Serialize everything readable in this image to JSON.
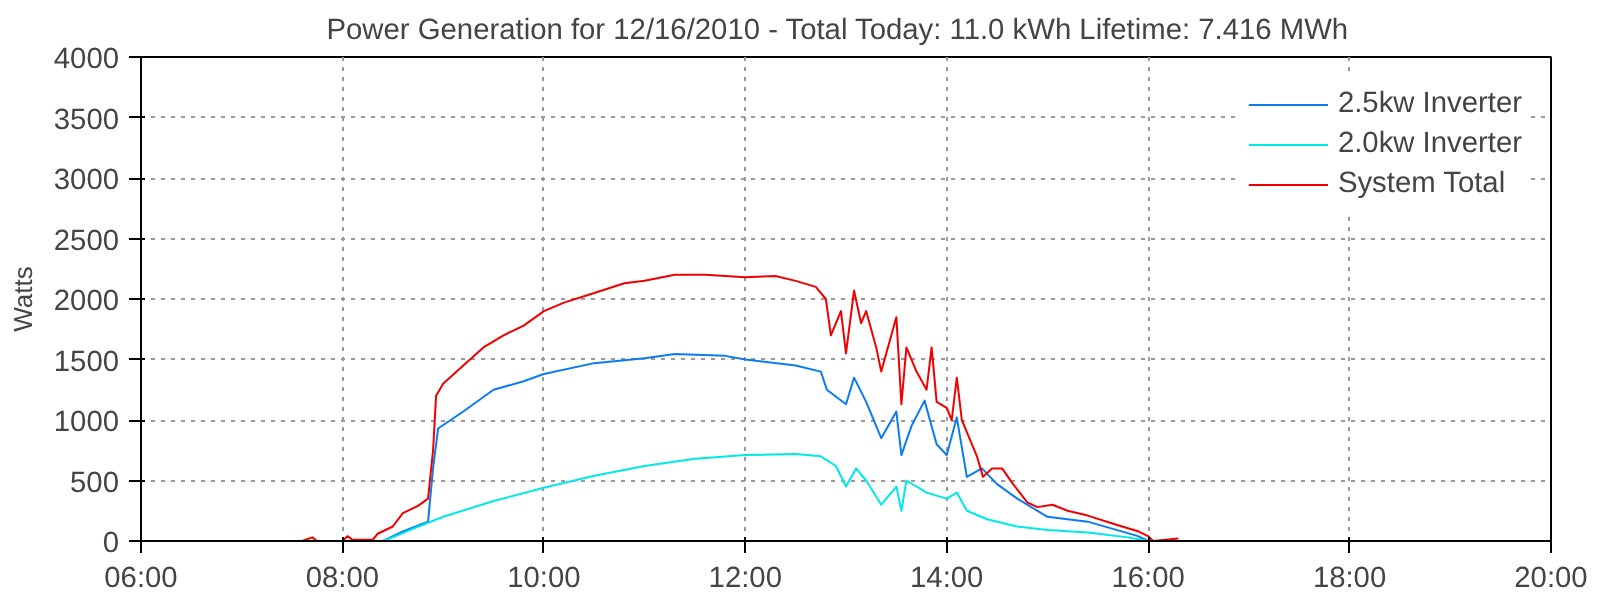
{
  "chart_data": {
    "type": "line",
    "title": "Power Generation for 12/16/2010 - Total Today: 11.0 kWh   Lifetime: 7.416 MWh",
    "ylabel": "Watts",
    "xlim": [
      6,
      20
    ],
    "xticks": [
      {
        "value": 6,
        "label": "06:00"
      },
      {
        "value": 8,
        "label": "08:00"
      },
      {
        "value": 10,
        "label": "10:00"
      },
      {
        "value": 12,
        "label": "12:00"
      },
      {
        "value": 14,
        "label": "14:00"
      },
      {
        "value": 16,
        "label": "16:00"
      },
      {
        "value": 18,
        "label": "18:00"
      },
      {
        "value": 20,
        "label": "20:00"
      }
    ],
    "ylim": [
      0,
      4000
    ],
    "yticks": [
      0,
      500,
      1000,
      1500,
      2000,
      2500,
      3000,
      3500,
      4000
    ],
    "grid": true,
    "legend": "top right",
    "line_style": "solid",
    "marker": "none",
    "series": [
      {
        "name": "2.5kw Inverter",
        "color": "#0a7cf0",
        "x": [
          8.4,
          8.45,
          8.6,
          8.85,
          8.9,
          8.95,
          9.2,
          9.5,
          9.8,
          10.0,
          10.5,
          11.0,
          11.3,
          11.8,
          12.0,
          12.5,
          12.75,
          12.81,
          13.0,
          13.08,
          13.2,
          13.35,
          13.5,
          13.55,
          13.65,
          13.78,
          13.9,
          14.0,
          14.1,
          14.2,
          14.35,
          14.5,
          14.7,
          15.0,
          15.4,
          15.9,
          16.0,
          16.3
        ],
        "values": [
          0,
          20,
          80,
          160,
          600,
          930,
          1070,
          1250,
          1320,
          1380,
          1470,
          1510,
          1545,
          1530,
          1500,
          1450,
          1400,
          1250,
          1130,
          1350,
          1150,
          850,
          1070,
          710,
          950,
          1160,
          800,
          710,
          1020,
          530,
          600,
          470,
          350,
          200,
          160,
          40,
          0,
          0
        ]
      },
      {
        "name": "2.0kw Inverter",
        "color": "#00e8e8",
        "x": [
          8.4,
          8.5,
          8.7,
          9.0,
          9.5,
          10.0,
          10.5,
          11.0,
          11.5,
          12.0,
          12.5,
          12.75,
          12.9,
          13.0,
          13.1,
          13.2,
          13.35,
          13.5,
          13.55,
          13.6,
          13.8,
          14.0,
          14.1,
          14.2,
          14.4,
          14.7,
          15.0,
          15.4,
          15.8,
          16.0,
          16.3
        ],
        "values": [
          0,
          30,
          100,
          200,
          330,
          440,
          540,
          620,
          680,
          710,
          720,
          700,
          620,
          450,
          600,
          500,
          300,
          450,
          250,
          500,
          400,
          350,
          400,
          250,
          180,
          120,
          90,
          70,
          30,
          0,
          0
        ]
      },
      {
        "name": "System Total",
        "color": "#ee0000",
        "x": [
          7.6,
          7.7,
          7.75,
          8.0,
          8.05,
          8.1,
          8.3,
          8.35,
          8.5,
          8.6,
          8.75,
          8.85,
          8.9,
          8.93,
          9.0,
          9.2,
          9.4,
          9.6,
          9.8,
          10.0,
          10.2,
          10.5,
          10.8,
          11.0,
          11.3,
          11.6,
          12.0,
          12.3,
          12.5,
          12.7,
          12.8,
          12.85,
          12.95,
          13.0,
          13.08,
          13.15,
          13.2,
          13.3,
          13.35,
          13.45,
          13.5,
          13.55,
          13.6,
          13.7,
          13.8,
          13.85,
          13.9,
          14.0,
          14.05,
          14.1,
          14.15,
          14.2,
          14.3,
          14.36,
          14.45,
          14.55,
          14.65,
          14.8,
          14.9,
          15.05,
          15.2,
          15.4,
          15.7,
          15.9,
          16.0,
          16.05,
          16.3
        ],
        "values": [
          0,
          30,
          0,
          0,
          40,
          10,
          10,
          60,
          120,
          230,
          290,
          350,
          750,
          1200,
          1300,
          1450,
          1600,
          1700,
          1780,
          1900,
          1970,
          2050,
          2130,
          2150,
          2200,
          2200,
          2180,
          2190,
          2150,
          2100,
          2000,
          1700,
          1900,
          1550,
          2070,
          1800,
          1900,
          1600,
          1400,
          1700,
          1850,
          1130,
          1600,
          1400,
          1250,
          1600,
          1150,
          1100,
          1000,
          1350,
          1000,
          900,
          700,
          530,
          600,
          600,
          480,
          320,
          280,
          300,
          250,
          210,
          130,
          80,
          40,
          0,
          20
        ]
      }
    ]
  }
}
